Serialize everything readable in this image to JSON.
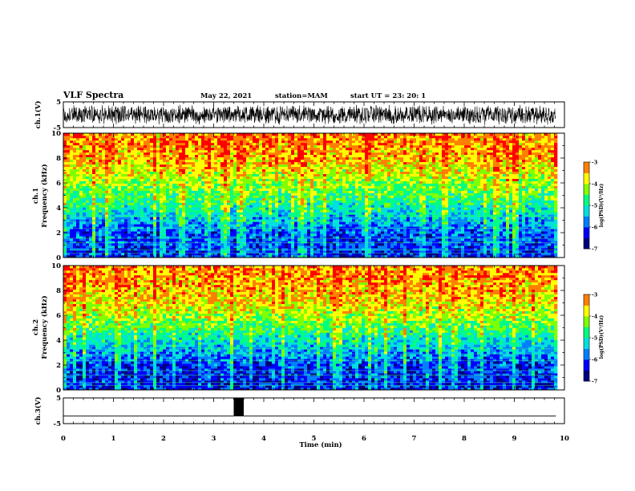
{
  "header": {
    "title": "VLF Spectra",
    "date": "May 22, 2021",
    "station": "station=MAM",
    "start": "start UT = 23: 20: 1"
  },
  "colors": {
    "spectrum_scale": [
      "#000080",
      "#0000ff",
      "#0080ff",
      "#00e0e0",
      "#00ff80",
      "#80ff00",
      "#ffff00",
      "#ff8000",
      "#ff0000",
      "#ffffff"
    ],
    "waveform": "#000000"
  },
  "chart_data": [
    {
      "type": "line",
      "name": "ch1-waveform",
      "ylabel": "ch.1(V)",
      "ylim": [
        -5,
        5
      ],
      "yticks": [
        "5",
        "-5"
      ],
      "xlim": [
        0,
        10
      ],
      "description_range": [
        -4,
        4
      ]
    },
    {
      "type": "heatmap",
      "name": "ch1-spectrogram",
      "ylabel": "ch.1\nFrequency (kHz)",
      "ylabel_lines": [
        "ch.1",
        "Frequency (kHz)"
      ],
      "ylim": [
        0,
        10
      ],
      "yticks": [
        "0",
        "2",
        "4",
        "6",
        "8",
        "10"
      ],
      "xlim": [
        0,
        10
      ],
      "colorbar": {
        "label": "log(PSD)(V²/Hz)",
        "range": [
          -7,
          -3
        ],
        "ticks": [
          "-3",
          "-4",
          "-5",
          "-6",
          "-7"
        ]
      },
      "profile_khz": [
        0,
        2,
        4,
        6,
        8,
        10
      ],
      "profile_logpsd": [
        -6.2,
        -6.0,
        -5.0,
        -4.2,
        -3.5,
        -3.3
      ]
    },
    {
      "type": "heatmap",
      "name": "ch2-spectrogram",
      "ylabel": "ch.2\nFrequency (kHz)",
      "ylabel_lines": [
        "ch.2",
        "Frequency (kHz)"
      ],
      "ylim": [
        0,
        10
      ],
      "yticks": [
        "0",
        "2",
        "4",
        "6",
        "8",
        "10"
      ],
      "xlim": [
        0,
        10
      ],
      "colorbar": {
        "label": "log(PSD)(V²/Hz)",
        "range": [
          -7,
          -3
        ],
        "ticks": [
          "-3",
          "-4",
          "-5",
          "-6",
          "-7"
        ]
      },
      "profile_khz": [
        0,
        2,
        4,
        6,
        8,
        10
      ],
      "profile_logpsd": [
        -6.3,
        -6.1,
        -5.1,
        -4.1,
        -3.5,
        -3.3
      ]
    },
    {
      "type": "line",
      "name": "ch3-signal",
      "ylabel": "ch.3(V)",
      "ylim": [
        -5,
        5
      ],
      "yticks": [
        "5",
        "-5"
      ],
      "xlim": [
        0,
        10
      ],
      "baseline": -2,
      "pulse": {
        "x_start": 3.4,
        "x_end": 3.6,
        "y_low": -2,
        "y_high": 5
      }
    }
  ],
  "xaxis": {
    "label": "Time (min)",
    "ticks": [
      "0",
      "1",
      "2",
      "3",
      "4",
      "5",
      "6",
      "7",
      "8",
      "9",
      "10"
    ],
    "range": [
      0,
      10
    ],
    "data_end": 9.83
  }
}
